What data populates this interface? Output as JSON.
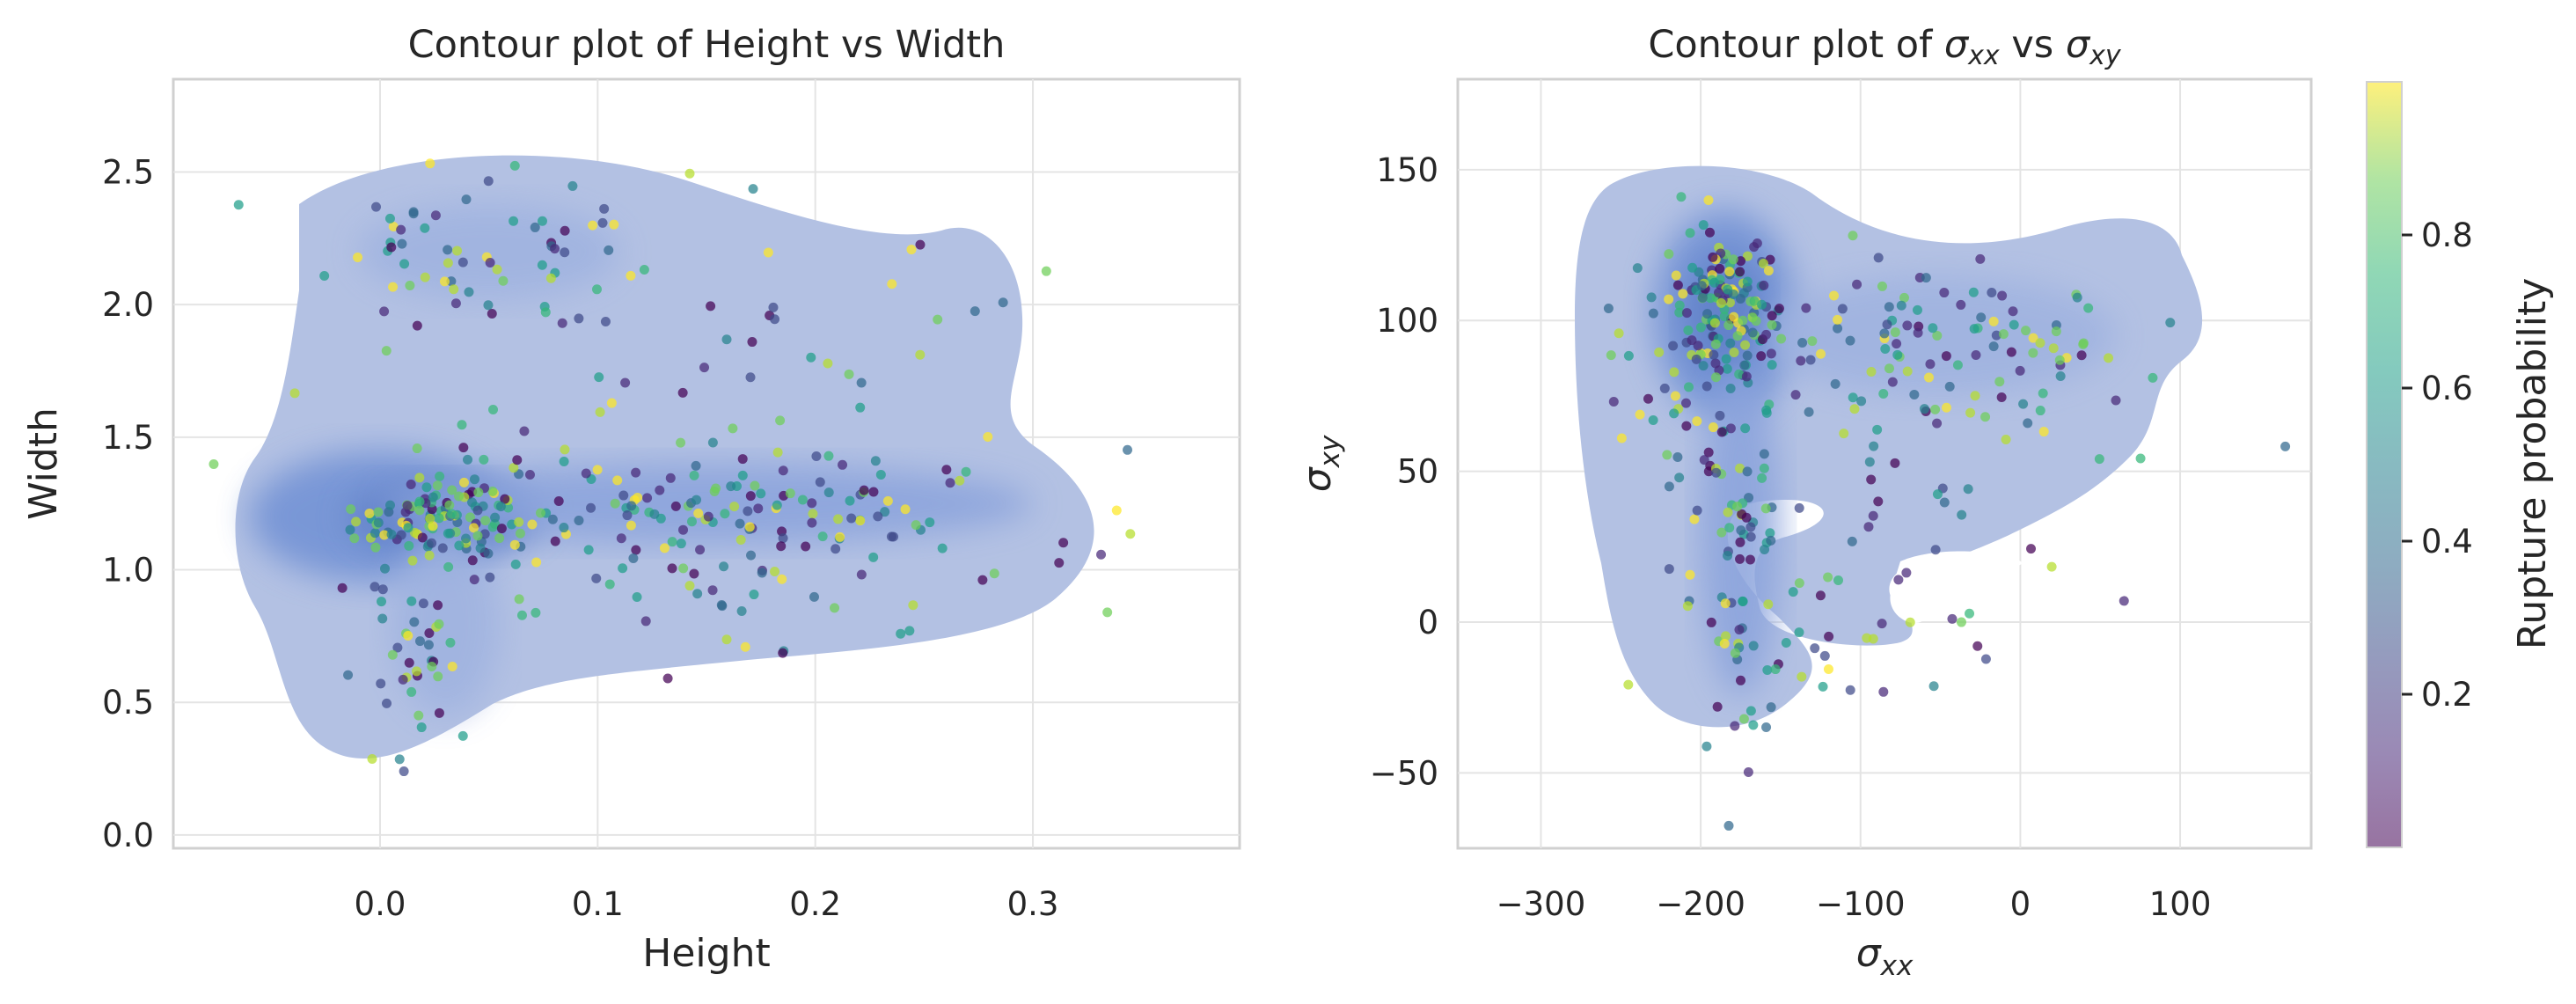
{
  "chart_data": [
    {
      "type": "scatter",
      "overlay": "kde-contour",
      "title": "Contour plot of Height vs Width",
      "xlabel": "Height",
      "ylabel": "Width",
      "xlim": [
        -0.095,
        0.395
      ],
      "ylim": [
        -0.05,
        2.85
      ],
      "xticks": [
        0.0,
        0.1,
        0.2,
        0.3
      ],
      "yticks": [
        0.0,
        0.5,
        1.0,
        1.5,
        2.0,
        2.5
      ],
      "xtick_labels": [
        "0.0",
        "0.1",
        "0.2",
        "0.3"
      ],
      "ytick_labels": [
        "0.0",
        "0.5",
        "1.0",
        "1.5",
        "2.0",
        "2.5"
      ],
      "grid": true,
      "clusters": [
        {
          "cx": 0.03,
          "cy": 1.2,
          "sx": 0.02,
          "sy": 0.09,
          "n": 110
        },
        {
          "cx": 0.16,
          "cy": 1.25,
          "sx": 0.07,
          "sy": 0.12,
          "n": 130
        },
        {
          "cx": 0.02,
          "cy": 0.75,
          "sx": 0.012,
          "sy": 0.22,
          "n": 45
        },
        {
          "cx": 0.05,
          "cy": 2.2,
          "sx": 0.04,
          "sy": 0.12,
          "n": 55
        },
        {
          "cx": 0.15,
          "cy": 1.8,
          "sx": 0.09,
          "sy": 0.35,
          "n": 60
        },
        {
          "cx": 0.17,
          "cy": 0.9,
          "sx": 0.08,
          "sy": 0.15,
          "n": 40
        }
      ],
      "density_blobs": [
        {
          "cx": 0.0,
          "cy": 1.2,
          "rx": 0.06,
          "ry": 0.25,
          "level": 3
        },
        {
          "cx": 0.03,
          "cy": 1.2,
          "rx": 0.045,
          "ry": 0.14,
          "level": 4
        },
        {
          "cx": 0.15,
          "cy": 1.25,
          "rx": 0.15,
          "ry": 0.15,
          "level": 2
        },
        {
          "cx": 0.03,
          "cy": 0.8,
          "rx": 0.025,
          "ry": 0.35,
          "level": 1
        },
        {
          "cx": 0.05,
          "cy": 2.2,
          "rx": 0.06,
          "ry": 0.18,
          "level": 1
        }
      ]
    },
    {
      "type": "scatter",
      "overlay": "kde-contour",
      "title_prefix": "Contour plot of ",
      "title_parts": [
        {
          "sym": "σ",
          "sub": "xx"
        },
        {
          "mid": " vs "
        },
        {
          "sym": "σ",
          "sub": "xy"
        }
      ],
      "xlabel": {
        "sym": "σ",
        "sub": "xx"
      },
      "ylabel": {
        "sym": "σ",
        "sub": "xy"
      },
      "xlim": [
        -352,
        182
      ],
      "ylim": [
        -75,
        180
      ],
      "xticks": [
        -300,
        -200,
        -100,
        0,
        100
      ],
      "yticks": [
        -50,
        0,
        50,
        100,
        150
      ],
      "xtick_labels": [
        "−300",
        "−200",
        "−100",
        "0",
        "100"
      ],
      "ytick_labels": [
        "−50",
        "0",
        "50",
        "100",
        "150"
      ],
      "grid": true,
      "clusters": [
        {
          "cx": -185,
          "cy": 102,
          "sx": 18,
          "sy": 13,
          "n": 150
        },
        {
          "cx": -175,
          "cy": 20,
          "sx": 15,
          "sy": 30,
          "n": 80
        },
        {
          "cx": -40,
          "cy": 95,
          "sx": 60,
          "sy": 15,
          "n": 90
        },
        {
          "cx": -80,
          "cy": 60,
          "sx": 70,
          "sy": 25,
          "n": 45
        },
        {
          "cx": -230,
          "cy": 70,
          "sx": 20,
          "sy": 40,
          "n": 25
        },
        {
          "cx": -90,
          "cy": -10,
          "sx": 50,
          "sy": 12,
          "n": 25
        }
      ],
      "density_blobs": [
        {
          "cx": -185,
          "cy": 102,
          "rx": 45,
          "ry": 35,
          "level": 3
        },
        {
          "cx": -185,
          "cy": 102,
          "rx": 25,
          "ry": 20,
          "level": 4
        },
        {
          "cx": -175,
          "cy": 30,
          "rx": 25,
          "ry": 55,
          "level": 2
        },
        {
          "cx": -50,
          "cy": 95,
          "rx": 110,
          "ry": 20,
          "level": 1
        }
      ],
      "colorbar": {
        "label": "Rupture probability",
        "range": [
          0.0,
          1.0
        ],
        "ticks": [
          0.2,
          0.4,
          0.6,
          0.8
        ],
        "tick_labels": [
          "0.2",
          "0.4",
          "0.6",
          "0.8"
        ],
        "colormap": "viridis"
      }
    }
  ]
}
